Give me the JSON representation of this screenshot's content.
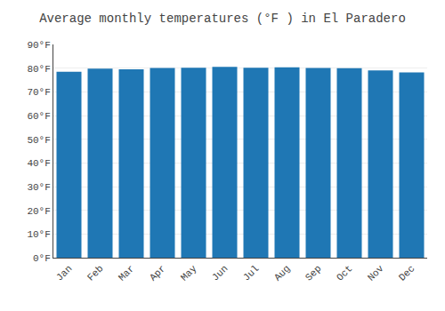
{
  "chart_data": {
    "type": "bar",
    "title": "Average monthly temperatures (°F ) in El Paradero",
    "categories": [
      "Jan",
      "Feb",
      "Mar",
      "Apr",
      "May",
      "Jun",
      "Jul",
      "Aug",
      "Sep",
      "Oct",
      "Nov",
      "Dec"
    ],
    "values": [
      78.5,
      79.8,
      79.5,
      80.1,
      80.2,
      80.5,
      80.2,
      80.3,
      80.1,
      80.0,
      79.0,
      78.2
    ],
    "ylim": [
      0,
      90
    ],
    "yticks": [
      {
        "value": 0,
        "label": "0°F"
      },
      {
        "value": 10,
        "label": "10°F"
      },
      {
        "value": 20,
        "label": "20°F"
      },
      {
        "value": 30,
        "label": "30°F"
      },
      {
        "value": 40,
        "label": "40°F"
      },
      {
        "value": 50,
        "label": "50°F"
      },
      {
        "value": 60,
        "label": "60°F"
      },
      {
        "value": 70,
        "label": "70°F"
      },
      {
        "value": 80,
        "label": "80°F"
      },
      {
        "value": 90,
        "label": "90°F"
      }
    ],
    "grid": true
  }
}
